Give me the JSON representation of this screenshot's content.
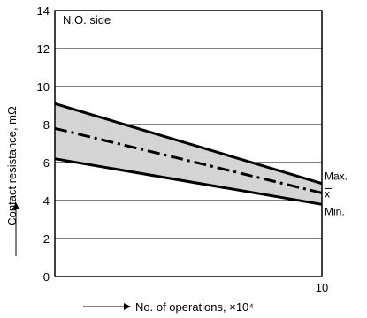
{
  "chart_data": {
    "type": "area",
    "title": "N.O. side",
    "xlabel": "No. of operations, ×10⁴",
    "ylabel": "Contact resistance, mΩ",
    "xlim": [
      0,
      10
    ],
    "ylim": [
      0,
      14
    ],
    "grid": "horizontal",
    "x_tick_labels": [
      "0",
      "10"
    ],
    "y_tick_labels": [
      "0",
      "2",
      "4",
      "6",
      "8",
      "10",
      "12",
      "14"
    ],
    "y_ticks": [
      0,
      2,
      4,
      6,
      8,
      10,
      12,
      14
    ],
    "band_color": "#d4d4d4",
    "line_color": "#000000",
    "series": [
      {
        "name": "Max.",
        "x": [
          0,
          10
        ],
        "values": [
          9.1,
          4.9
        ]
      },
      {
        "name": "x",
        "x": [
          0,
          10
        ],
        "values": [
          7.8,
          4.4
        ],
        "style": "dash-dot"
      },
      {
        "name": "Min.",
        "x": [
          0,
          10
        ],
        "values": [
          6.2,
          3.8
        ]
      }
    ]
  }
}
